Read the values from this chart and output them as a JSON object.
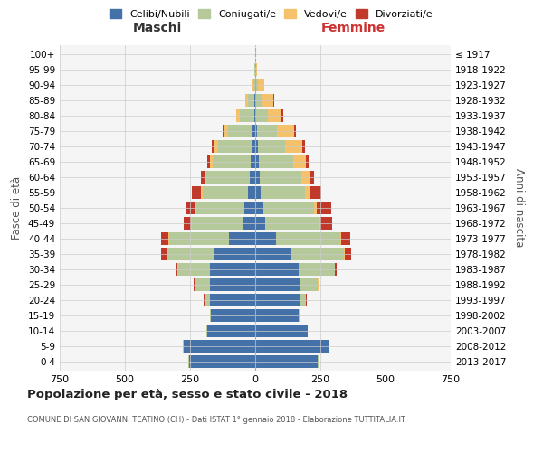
{
  "age_groups": [
    "0-4",
    "5-9",
    "10-14",
    "15-19",
    "20-24",
    "25-29",
    "30-34",
    "35-39",
    "40-44",
    "45-49",
    "50-54",
    "55-59",
    "60-64",
    "65-69",
    "70-74",
    "75-79",
    "80-84",
    "85-89",
    "90-94",
    "95-99",
    "100+"
  ],
  "birth_years": [
    "2013-2017",
    "2008-2012",
    "2003-2007",
    "1998-2002",
    "1993-1997",
    "1988-1992",
    "1983-1987",
    "1978-1982",
    "1973-1977",
    "1968-1972",
    "1963-1967",
    "1958-1962",
    "1953-1957",
    "1948-1952",
    "1943-1947",
    "1938-1942",
    "1933-1937",
    "1928-1932",
    "1923-1927",
    "1918-1922",
    "≤ 1917"
  ],
  "males": {
    "celibi": [
      255,
      275,
      185,
      170,
      175,
      175,
      175,
      155,
      100,
      48,
      40,
      28,
      22,
      18,
      12,
      10,
      5,
      2,
      0,
      0,
      0
    ],
    "coniugati": [
      2,
      2,
      2,
      5,
      20,
      55,
      120,
      185,
      230,
      195,
      185,
      175,
      165,
      145,
      130,
      95,
      55,
      25,
      8,
      2,
      0
    ],
    "vedovi": [
      0,
      0,
      0,
      0,
      0,
      2,
      2,
      2,
      2,
      2,
      3,
      5,
      5,
      10,
      15,
      15,
      12,
      10,
      5,
      2,
      0
    ],
    "divorziati": [
      0,
      0,
      0,
      0,
      2,
      3,
      5,
      18,
      30,
      28,
      40,
      35,
      18,
      12,
      8,
      5,
      2,
      0,
      0,
      0,
      0
    ]
  },
  "females": {
    "nubili": [
      240,
      280,
      200,
      165,
      170,
      170,
      165,
      140,
      80,
      38,
      30,
      22,
      18,
      15,
      10,
      8,
      5,
      3,
      2,
      0,
      0
    ],
    "coniugate": [
      2,
      2,
      2,
      5,
      25,
      70,
      140,
      200,
      245,
      205,
      195,
      170,
      160,
      130,
      105,
      75,
      42,
      22,
      8,
      2,
      0
    ],
    "vedove": [
      0,
      0,
      0,
      0,
      0,
      2,
      2,
      3,
      5,
      6,
      10,
      18,
      30,
      48,
      65,
      65,
      55,
      45,
      25,
      5,
      0
    ],
    "divorziate": [
      0,
      0,
      0,
      0,
      2,
      3,
      5,
      25,
      35,
      45,
      55,
      42,
      18,
      12,
      10,
      8,
      4,
      2,
      0,
      0,
      0
    ]
  },
  "colors": {
    "celibi_nubili": "#4472a8",
    "coniugati": "#b5c99a",
    "vedovi": "#f5c26b",
    "divorziati": "#c0392b"
  },
  "title": "Popolazione per età, sesso e stato civile - 2018",
  "subtitle": "COMUNE DI SAN GIOVANNI TEATINO (CH) - Dati ISTAT 1° gennaio 2018 - Elaborazione TUTTITALIA.IT",
  "xlabel_left": "Maschi",
  "xlabel_right": "Femmine",
  "ylabel_left": "Fasce di età",
  "ylabel_right": "Anni di nascita",
  "xlim": 750,
  "bg_color": "#ffffff",
  "plot_bg_color": "#f5f5f5",
  "grid_color": "#cccccc",
  "legend_labels": [
    "Celibi/Nubili",
    "Coniugati/e",
    "Vedovi/e",
    "Divorziati/e"
  ]
}
